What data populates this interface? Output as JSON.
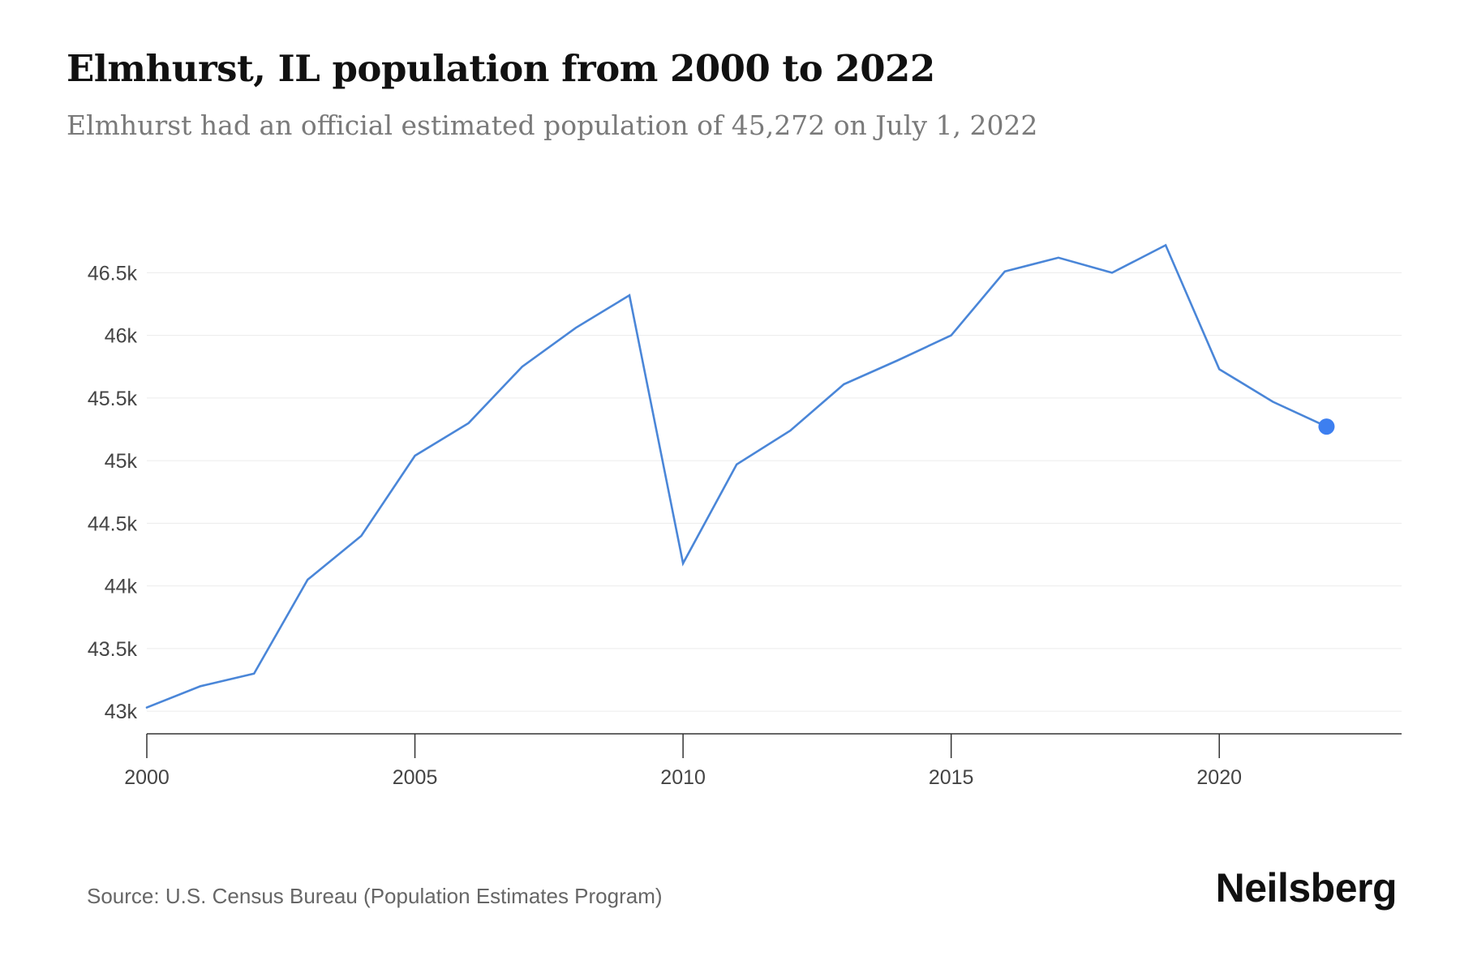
{
  "title": "Elmhurst, IL population from 2000 to 2022",
  "subtitle": "Elmhurst had an official estimated population of 45,272 on July 1, 2022",
  "source": "Source: U.S. Census Bureau (Population Estimates Program)",
  "brand": "Neilsberg",
  "colors": {
    "line": "#4a86d8",
    "marker": "#3d7ff0",
    "grid": "#ececec",
    "axis": "#333333"
  },
  "chart_data": {
    "type": "line",
    "title": "Elmhurst, IL population from 2000 to 2022",
    "xlabel": "",
    "ylabel": "",
    "x": [
      2000,
      2001,
      2002,
      2003,
      2004,
      2005,
      2006,
      2007,
      2008,
      2009,
      2010,
      2011,
      2012,
      2013,
      2014,
      2015,
      2016,
      2017,
      2018,
      2019,
      2020,
      2021,
      2022
    ],
    "series": [
      {
        "values": [
          43030,
          43200,
          43300,
          44050,
          44400,
          45040,
          45300,
          45750,
          46060,
          46320,
          44180,
          44970,
          45240,
          45610,
          45800,
          46000,
          46510,
          46620,
          46500,
          46720,
          45730,
          45470,
          45272
        ]
      }
    ],
    "xlim": [
      2000,
      2023.4
    ],
    "ylim": [
      42820,
      46800
    ],
    "x_ticks": [
      "2000",
      "2005",
      "2010",
      "2015",
      "2020"
    ],
    "y_ticks": [
      "43k",
      "43.5k",
      "44k",
      "44.5k",
      "45k",
      "45.5k",
      "46k",
      "46.5k"
    ],
    "x_tick_values": [
      2000,
      2005,
      2010,
      2015,
      2020
    ],
    "y_tick_values": [
      43000,
      43500,
      44000,
      44500,
      45000,
      45500,
      46000,
      46500
    ],
    "grid": true,
    "last_point_marker": true
  }
}
